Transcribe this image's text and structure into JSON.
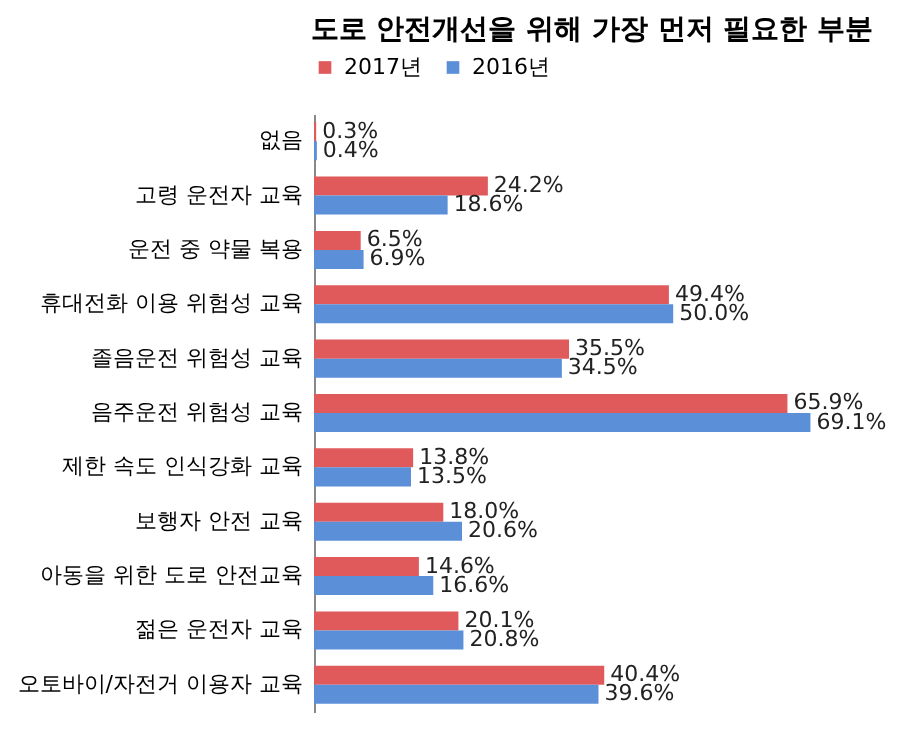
{
  "chart_data": {
    "type": "bar",
    "orientation": "horizontal",
    "title": "도로 안전개선을 위해 가장 먼저 필요한 부분",
    "categories": [
      "없음",
      "고령 운전자 교육",
      "운전 중 약물 복용",
      "휴대전화 이용 위험성 교육",
      "졸음운전 위험성 교육",
      "음주운전 위험성 교육",
      "제한 속도 인식강화 교육",
      "보행자 안전 교육",
      "아동을 위한 도로 안전교육",
      "젊은 운전자 교육",
      "오토바이/자전거 이용자 교육"
    ],
    "series": [
      {
        "name": "2017년",
        "color": "#e0595b",
        "values": [
          0.3,
          24.2,
          6.5,
          49.4,
          35.5,
          65.9,
          13.8,
          18.0,
          14.6,
          20.1,
          40.4
        ],
        "value_labels": [
          "0.3%",
          "24.2%",
          "6.5%",
          "49.4%",
          "35.5%",
          "65.9%",
          "13.8%",
          "18.0%",
          "14.6%",
          "20.1%",
          "40.4%"
        ]
      },
      {
        "name": "2016년",
        "color": "#5b8fd8",
        "values": [
          0.4,
          18.6,
          6.9,
          50.0,
          34.5,
          69.1,
          13.5,
          20.6,
          16.6,
          20.8,
          39.6
        ],
        "value_labels": [
          "0.4%",
          "18.6%",
          "6.9%",
          "50.0%",
          "34.5%",
          "69.1%",
          "13.5%",
          "20.6%",
          "16.6%",
          "20.8%",
          "39.6%"
        ]
      }
    ],
    "legend": "top",
    "grid": false,
    "tick_labels": "y"
  }
}
